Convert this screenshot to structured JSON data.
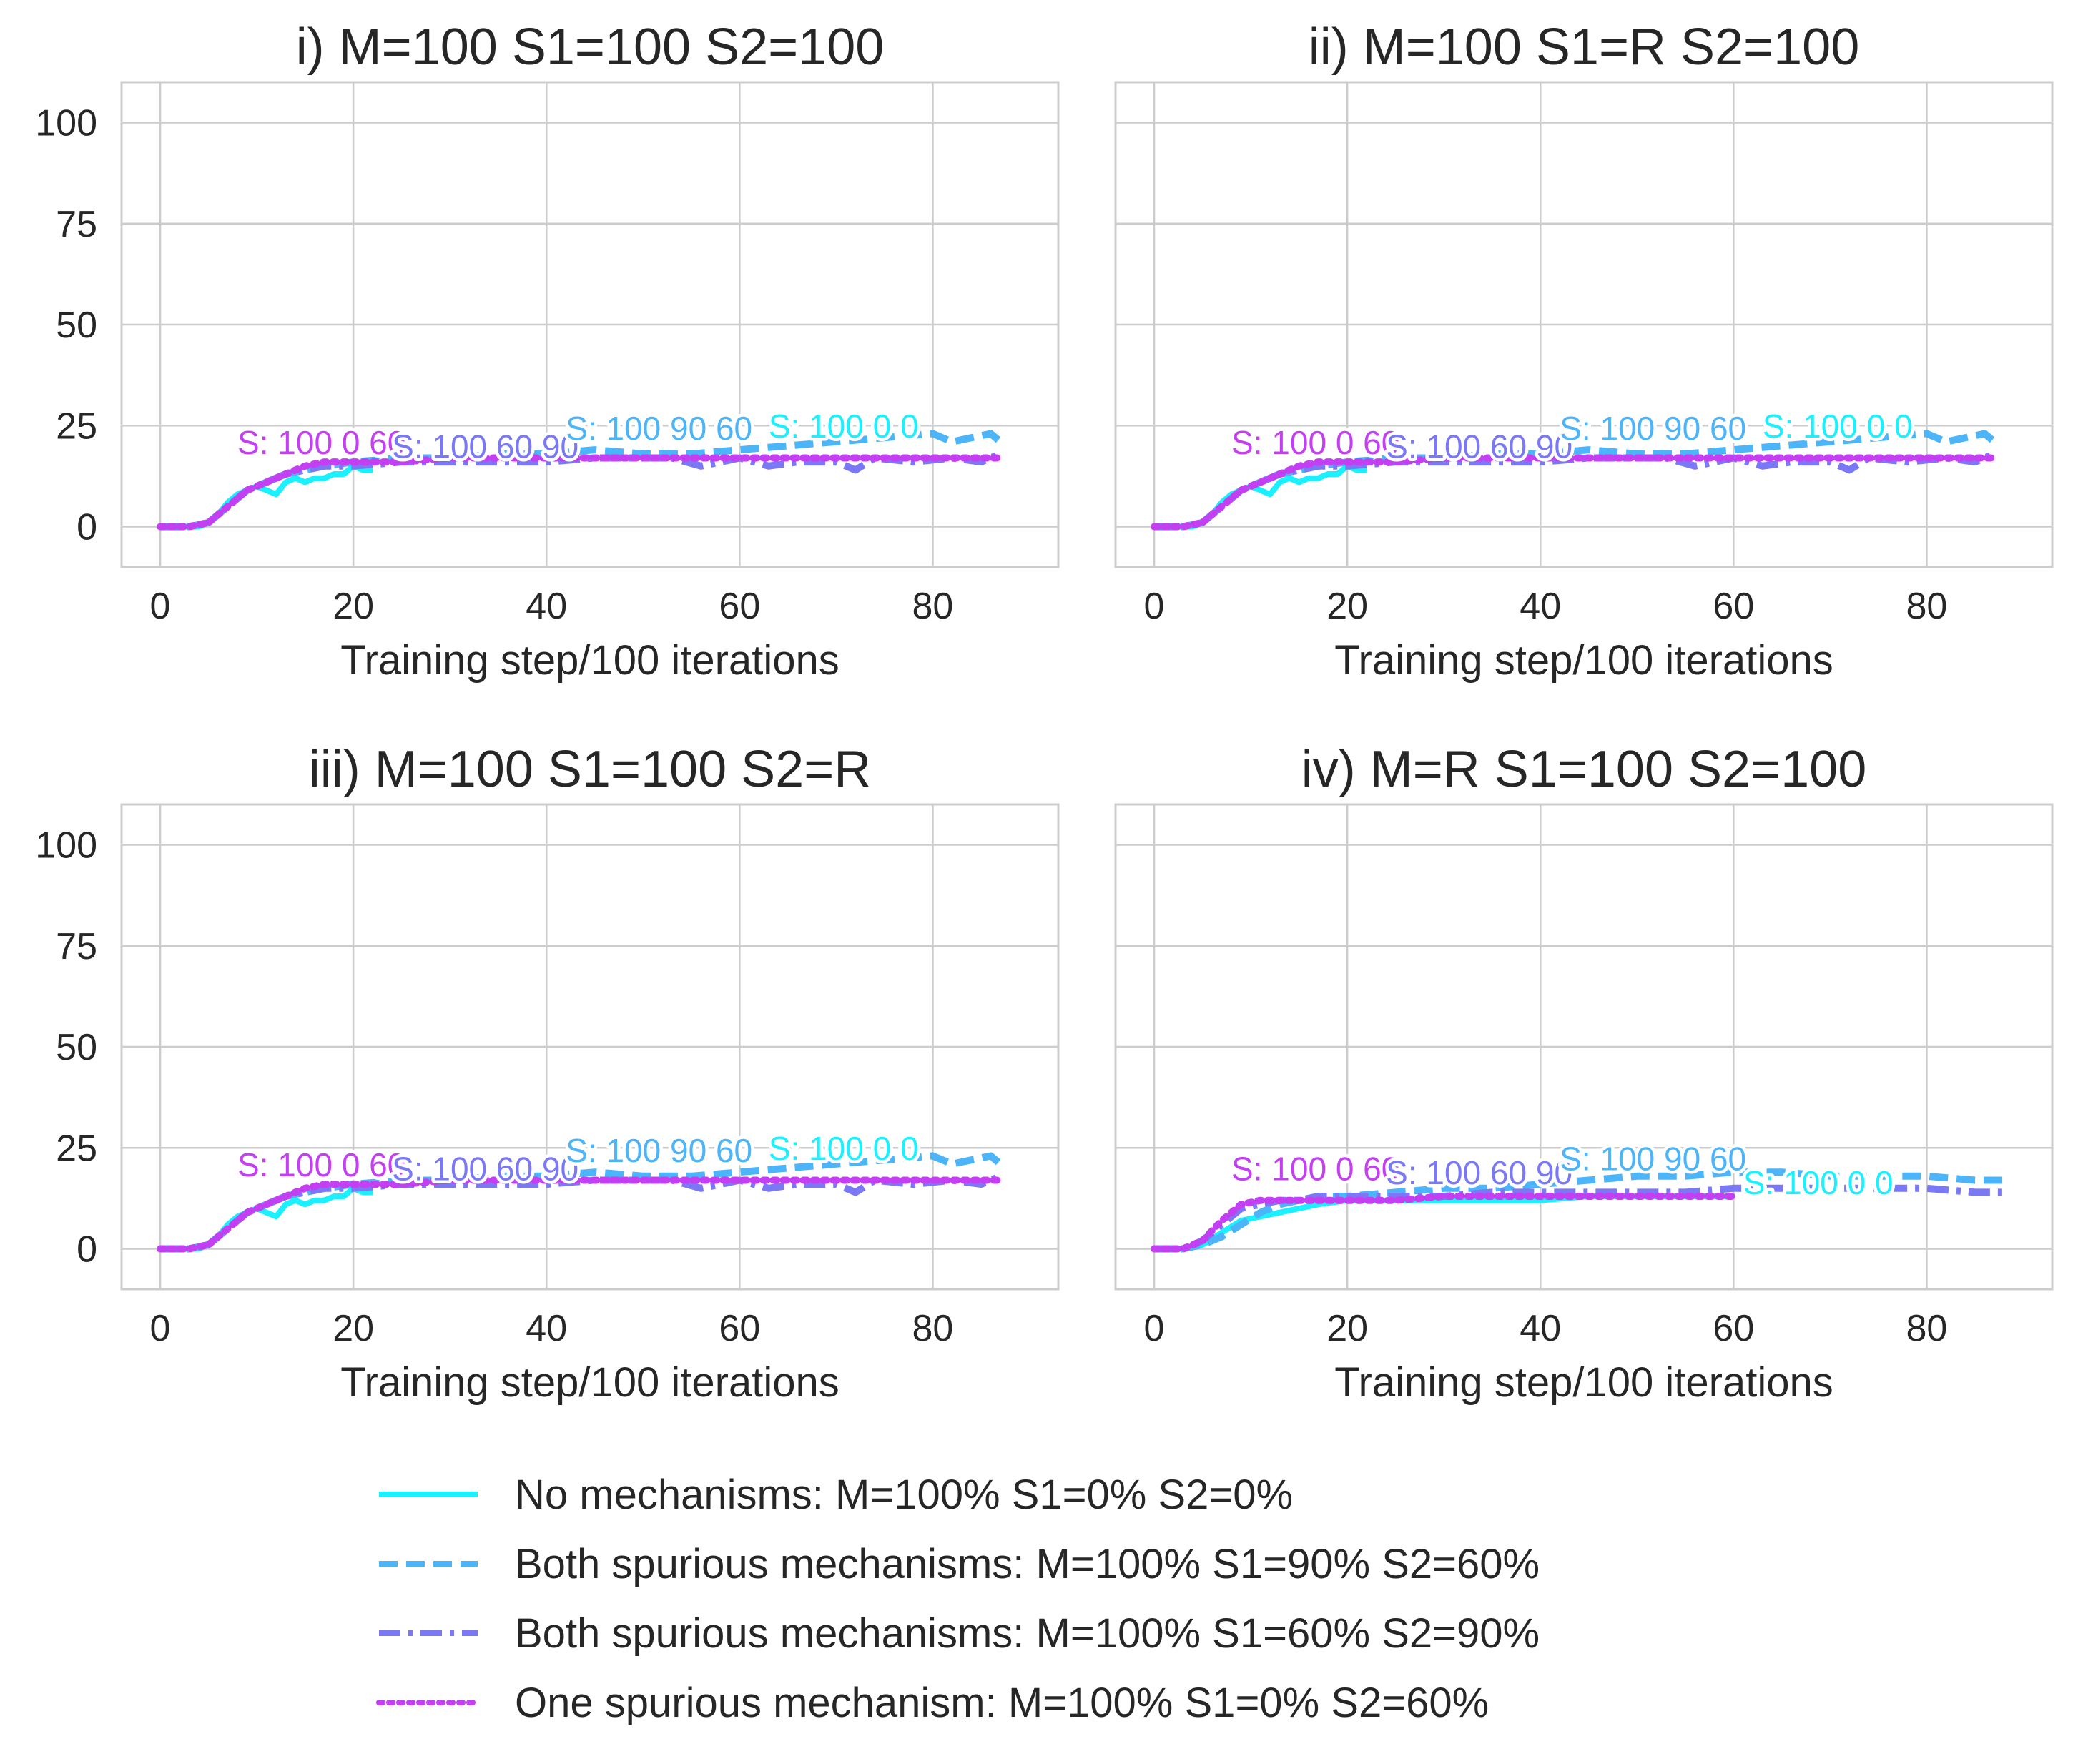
{
  "legend": [
    {
      "label": "No mechanisms: M=100% S1=0% S2=0%",
      "color": "#1af0ff",
      "dash": "solid"
    },
    {
      "label": "Both spurious mechanisms: M=100% S1=90% S2=60%",
      "color": "#4cb4f8",
      "dash": "dashed"
    },
    {
      "label": "Both spurious mechanisms: M=100% S1=60% S2=90%",
      "color": "#7a78f5",
      "dash": "dashdot"
    },
    {
      "label": "One spurious mechanism: M=100% S1=0% S2=60%",
      "color": "#c43ef2",
      "dash": "dotted"
    }
  ],
  "chart_data": [
    {
      "type": "line",
      "title": "i) M=100 S1=100 S2=100",
      "xlabel": "Training step/100 iterations",
      "ylabel": "",
      "xlim": [
        -4,
        93
      ],
      "ylim": [
        -10,
        110
      ],
      "xticks": [
        0,
        20,
        40,
        60,
        80
      ],
      "yticks": [
        0,
        25,
        50,
        75,
        100
      ],
      "grid": true,
      "series": [
        {
          "name": "No mechanisms: M=100% S1=0% S2=0%",
          "x": [
            0,
            2,
            4,
            5,
            6,
            7,
            8,
            9,
            10,
            11,
            12,
            13,
            14,
            15,
            16,
            17,
            18,
            19,
            20,
            21,
            22
          ],
          "values": [
            0,
            0,
            0,
            1,
            3,
            6,
            8,
            9,
            10,
            9,
            8,
            11,
            12,
            11,
            12,
            12,
            13,
            13,
            15,
            14,
            14
          ]
        },
        {
          "name": "Both spurious mechanisms: M=100% S1=90% S2=60%",
          "x": [
            0,
            3,
            5,
            7,
            9,
            11,
            13,
            15,
            17,
            20,
            25,
            30,
            35,
            40,
            45,
            50,
            55,
            60,
            65,
            70,
            75,
            80,
            82,
            84,
            86,
            87
          ],
          "values": [
            0,
            0,
            1,
            5,
            9,
            11,
            13,
            14,
            15,
            16,
            17,
            17,
            18,
            18,
            19,
            18,
            18,
            19,
            20,
            21,
            22,
            23,
            21,
            22,
            23,
            21
          ]
        },
        {
          "name": "Both spurious mechanisms: M=100% S1=60% S2=90%",
          "x": [
            0,
            3,
            5,
            7,
            9,
            11,
            13,
            15,
            17,
            20,
            25,
            30,
            35,
            40,
            45,
            50,
            53,
            56,
            60,
            63,
            66,
            70,
            72,
            74,
            78,
            82,
            85,
            87
          ],
          "values": [
            0,
            0,
            1,
            5,
            9,
            11,
            13,
            14,
            15,
            15,
            16,
            16,
            16,
            16,
            17,
            17,
            17,
            15,
            17,
            15,
            16,
            16,
            14,
            17,
            16,
            17,
            16,
            18
          ]
        },
        {
          "name": "One spurious mechanism: M=100% S1=0% S2=60%",
          "x": [
            0,
            3,
            5,
            7,
            9,
            11,
            13,
            15,
            17,
            20,
            23,
            25,
            30,
            35,
            40,
            45,
            50,
            55,
            60,
            65,
            70,
            75,
            80,
            85,
            87
          ],
          "values": [
            0,
            0,
            1,
            5,
            9,
            11,
            13,
            15,
            16,
            16,
            16,
            16,
            17,
            17,
            17,
            17,
            17,
            17,
            17,
            17,
            17,
            17,
            17,
            17,
            17
          ]
        }
      ],
      "annotations": [
        {
          "text": "S: 100 0 60",
          "x": 8,
          "y": 18,
          "color": "#c43ef2"
        },
        {
          "text": "S: 100 60 90",
          "x": 24,
          "y": 17,
          "color": "#7a78f5"
        },
        {
          "text": "S: 100 90 60",
          "x": 42,
          "y": 21.5,
          "color": "#4cb4f8"
        },
        {
          "text": "S: 100 0 0",
          "x": 63,
          "y": 22,
          "color": "#1af0ff"
        }
      ]
    },
    {
      "type": "line",
      "title": "ii) M=100 S1=R S2=100",
      "xlabel": "Training step/100 iterations",
      "ylabel": "",
      "xlim": [
        -4,
        93
      ],
      "ylim": [
        -10,
        110
      ],
      "xticks": [
        0,
        20,
        40,
        60,
        80
      ],
      "yticks": [
        0,
        25,
        50,
        75,
        100
      ],
      "grid": true,
      "series": [
        {
          "name": "No mechanisms: M=100% S1=0% S2=0%",
          "x": [
            0,
            2,
            4,
            5,
            6,
            7,
            8,
            9,
            10,
            11,
            12,
            13,
            14,
            15,
            16,
            17,
            18,
            19,
            20,
            21,
            22
          ],
          "values": [
            0,
            0,
            0,
            1,
            3,
            6,
            8,
            9,
            10,
            9,
            8,
            11,
            12,
            11,
            12,
            12,
            13,
            13,
            15,
            14,
            14
          ]
        },
        {
          "name": "Both spurious mechanisms: M=100% S1=90% S2=60%",
          "x": [
            0,
            3,
            5,
            7,
            9,
            11,
            13,
            15,
            17,
            20,
            25,
            30,
            35,
            40,
            45,
            50,
            55,
            60,
            65,
            70,
            75,
            80,
            82,
            84,
            86,
            87
          ],
          "values": [
            0,
            0,
            1,
            5,
            9,
            11,
            13,
            14,
            15,
            16,
            17,
            17,
            18,
            18,
            19,
            18,
            18,
            19,
            20,
            21,
            22,
            23,
            21,
            22,
            23,
            21
          ]
        },
        {
          "name": "Both spurious mechanisms: M=100% S1=60% S2=90%",
          "x": [
            0,
            3,
            5,
            7,
            9,
            11,
            13,
            15,
            17,
            20,
            25,
            30,
            35,
            40,
            45,
            50,
            53,
            56,
            60,
            63,
            66,
            70,
            72,
            74,
            78,
            82,
            85,
            87
          ],
          "values": [
            0,
            0,
            1,
            5,
            9,
            11,
            13,
            14,
            15,
            15,
            16,
            16,
            16,
            16,
            17,
            17,
            17,
            15,
            17,
            15,
            16,
            16,
            14,
            17,
            16,
            17,
            16,
            18
          ]
        },
        {
          "name": "One spurious mechanism: M=100% S1=0% S2=60%",
          "x": [
            0,
            3,
            5,
            7,
            9,
            11,
            13,
            15,
            17,
            20,
            23,
            25,
            30,
            35,
            40,
            45,
            50,
            55,
            60,
            65,
            70,
            75,
            80,
            85,
            87
          ],
          "values": [
            0,
            0,
            1,
            5,
            9,
            11,
            13,
            15,
            16,
            16,
            16,
            16,
            17,
            17,
            17,
            17,
            17,
            17,
            17,
            17,
            17,
            17,
            17,
            17,
            17
          ]
        }
      ],
      "annotations": [
        {
          "text": "S: 100 0 60",
          "x": 8,
          "y": 18,
          "color": "#c43ef2"
        },
        {
          "text": "S: 100 60 90",
          "x": 24,
          "y": 17,
          "color": "#7a78f5"
        },
        {
          "text": "S: 100 90 60",
          "x": 42,
          "y": 21.5,
          "color": "#4cb4f8"
        },
        {
          "text": "S: 100 0 0",
          "x": 63,
          "y": 22,
          "color": "#1af0ff"
        }
      ]
    },
    {
      "type": "line",
      "title": "iii) M=100 S1=100 S2=R",
      "xlabel": "Training step/100 iterations",
      "ylabel": "",
      "xlim": [
        -4,
        93
      ],
      "ylim": [
        -10,
        110
      ],
      "xticks": [
        0,
        20,
        40,
        60,
        80
      ],
      "yticks": [
        0,
        25,
        50,
        75,
        100
      ],
      "grid": true,
      "series": [
        {
          "name": "No mechanisms: M=100% S1=0% S2=0%",
          "x": [
            0,
            2,
            4,
            5,
            6,
            7,
            8,
            9,
            10,
            11,
            12,
            13,
            14,
            15,
            16,
            17,
            18,
            19,
            20,
            21,
            22
          ],
          "values": [
            0,
            0,
            0,
            1,
            3,
            6,
            8,
            9,
            10,
            9,
            8,
            11,
            12,
            11,
            12,
            12,
            13,
            13,
            15,
            14,
            14
          ]
        },
        {
          "name": "Both spurious mechanisms: M=100% S1=90% S2=60%",
          "x": [
            0,
            3,
            5,
            7,
            9,
            11,
            13,
            15,
            17,
            20,
            25,
            30,
            35,
            40,
            45,
            50,
            55,
            60,
            65,
            70,
            75,
            80,
            82,
            84,
            86,
            87
          ],
          "values": [
            0,
            0,
            1,
            5,
            9,
            11,
            13,
            14,
            15,
            16,
            17,
            17,
            18,
            18,
            19,
            18,
            18,
            19,
            20,
            21,
            22,
            23,
            21,
            22,
            23,
            21
          ]
        },
        {
          "name": "Both spurious mechanisms: M=100% S1=60% S2=90%",
          "x": [
            0,
            3,
            5,
            7,
            9,
            11,
            13,
            15,
            17,
            20,
            25,
            30,
            35,
            40,
            45,
            50,
            53,
            56,
            60,
            63,
            66,
            70,
            72,
            74,
            78,
            82,
            85,
            87
          ],
          "values": [
            0,
            0,
            1,
            5,
            9,
            11,
            13,
            14,
            15,
            15,
            16,
            16,
            16,
            16,
            17,
            17,
            17,
            15,
            17,
            15,
            16,
            16,
            14,
            17,
            16,
            17,
            16,
            18
          ]
        },
        {
          "name": "One spurious mechanism: M=100% S1=0% S2=60%",
          "x": [
            0,
            3,
            5,
            7,
            9,
            11,
            13,
            15,
            17,
            20,
            23,
            25,
            30,
            35,
            40,
            45,
            50,
            55,
            60,
            65,
            70,
            75,
            80,
            85,
            87
          ],
          "values": [
            0,
            0,
            1,
            5,
            9,
            11,
            13,
            15,
            16,
            16,
            16,
            16,
            17,
            17,
            17,
            17,
            17,
            17,
            17,
            17,
            17,
            17,
            17,
            17,
            17
          ]
        }
      ],
      "annotations": [
        {
          "text": "S: 100 0 60",
          "x": 8,
          "y": 18,
          "color": "#c43ef2"
        },
        {
          "text": "S: 100 60 90",
          "x": 24,
          "y": 17,
          "color": "#7a78f5"
        },
        {
          "text": "S: 100 90 60",
          "x": 42,
          "y": 21.5,
          "color": "#4cb4f8"
        },
        {
          "text": "S: 100 0 0",
          "x": 63,
          "y": 22,
          "color": "#1af0ff"
        }
      ]
    },
    {
      "type": "line",
      "title": "iv) M=R S1=100 S2=100",
      "xlabel": "Training step/100 iterations",
      "ylabel": "",
      "xlim": [
        -4,
        93
      ],
      "ylim": [
        -10,
        110
      ],
      "xticks": [
        0,
        20,
        40,
        60,
        80
      ],
      "yticks": [
        0,
        25,
        50,
        75,
        100
      ],
      "grid": true,
      "series": [
        {
          "name": "No mechanisms: M=100% S1=0% S2=0%",
          "x": [
            0,
            3,
            5,
            7,
            9,
            11,
            13,
            15,
            17,
            20,
            25,
            30,
            35,
            40,
            45,
            50,
            55,
            60
          ],
          "values": [
            0,
            0,
            1,
            4,
            7,
            8,
            9,
            10,
            11,
            12,
            12,
            12,
            12,
            12,
            13,
            13,
            13,
            13
          ]
        },
        {
          "name": "Both spurious mechanisms: M=100% S1=90% S2=60%",
          "x": [
            0,
            3,
            5,
            7,
            9,
            11,
            13,
            15,
            17,
            20,
            25,
            30,
            35,
            40,
            45,
            50,
            55,
            60,
            65,
            70,
            75,
            80,
            85,
            88
          ],
          "values": [
            0,
            0,
            1,
            3,
            6,
            9,
            11,
            12,
            13,
            13,
            14,
            15,
            15,
            16,
            17,
            18,
            18,
            19,
            19,
            18,
            18,
            18,
            17,
            17
          ]
        },
        {
          "name": "Both spurious mechanisms: M=100% S1=60% S2=90%",
          "x": [
            0,
            3,
            5,
            7,
            9,
            11,
            13,
            15,
            17,
            20,
            25,
            30,
            35,
            40,
            45,
            50,
            55,
            60,
            65,
            70,
            75,
            80,
            85,
            88
          ],
          "values": [
            0,
            0,
            2,
            6,
            10,
            11,
            12,
            12,
            13,
            13,
            13,
            13,
            14,
            14,
            14,
            14,
            14,
            15,
            15,
            15,
            15,
            15,
            14,
            14
          ]
        },
        {
          "name": "One spurious mechanism: M=100% S1=0% S2=60%",
          "x": [
            0,
            3,
            5,
            7,
            9,
            11,
            13,
            15,
            17,
            20,
            25,
            30,
            35,
            40,
            45,
            50,
            55,
            60
          ],
          "values": [
            0,
            0,
            2,
            7,
            11,
            12,
            12,
            12,
            12,
            12,
            12,
            13,
            13,
            13,
            13,
            13,
            13,
            13
          ]
        }
      ],
      "annotations": [
        {
          "text": "S: 100 0 60",
          "x": 8,
          "y": 17,
          "color": "#c43ef2"
        },
        {
          "text": "S: 100 60 90",
          "x": 24,
          "y": 16,
          "color": "#7a78f5"
        },
        {
          "text": "S: 100 90 60",
          "x": 42,
          "y": 19.5,
          "color": "#4cb4f8"
        },
        {
          "text": "S: 100 0 0",
          "x": 61,
          "y": 13.5,
          "color": "#1af0ff"
        }
      ]
    }
  ]
}
